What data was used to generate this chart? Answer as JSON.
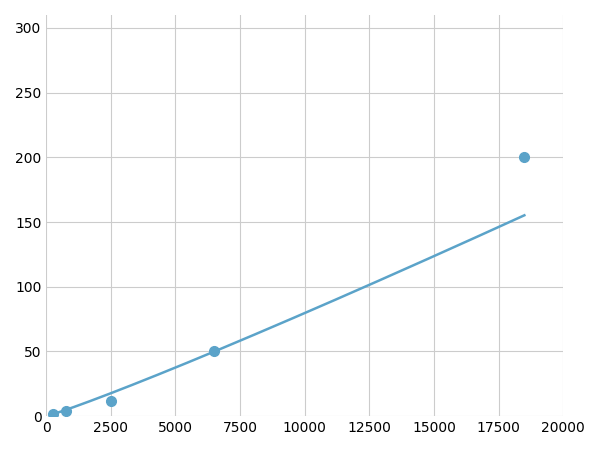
{
  "x_points": [
    250,
    750,
    2500,
    6500,
    18500
  ],
  "y_points": [
    2,
    4,
    12,
    50,
    200
  ],
  "line_color": "#5ba3c9",
  "marker_color": "#5ba3c9",
  "marker_size": 7,
  "line_width": 1.8,
  "xlim": [
    0,
    20000
  ],
  "ylim": [
    0,
    310
  ],
  "xticks": [
    0,
    2500,
    5000,
    7500,
    10000,
    12500,
    15000,
    17500,
    20000
  ],
  "yticks": [
    0,
    50,
    100,
    150,
    200,
    250,
    300
  ],
  "xtick_labels": [
    "0",
    "2500",
    "5000",
    "7500",
    "10000",
    "12500",
    "15000",
    "17500",
    "20000"
  ],
  "ytick_labels": [
    "0",
    "50",
    "100",
    "150",
    "200",
    "250",
    "300"
  ],
  "grid_color": "#cccccc",
  "bg_color": "#ffffff",
  "fig_bg_color": "#ffffff",
  "tick_fontsize": 10
}
